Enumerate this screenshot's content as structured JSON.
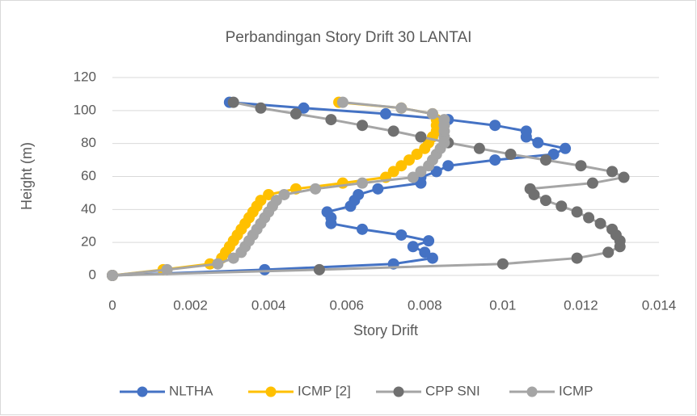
{
  "chart_data": {
    "type": "line",
    "title": "Perbandingan Story Drift 30 LANTAI",
    "x_label": "Story Drift",
    "y_label": "Height (m)",
    "xlim": [
      0,
      0.014
    ],
    "xticks": [
      0,
      0.002,
      0.004,
      0.006,
      0.008,
      0.01,
      0.012,
      0.014
    ],
    "ylim": [
      0,
      120
    ],
    "yticks": [
      0,
      20,
      40,
      60,
      80,
      100,
      120
    ],
    "grid": true,
    "legend": "bottom",
    "series": [
      {
        "name": "NLTHA",
        "color": "#4472c4",
        "marker_color": "#4472c4",
        "x": [
          0,
          0.0039,
          0.0072,
          0.0082,
          0.008,
          0.0077,
          0.0081,
          0.0074,
          0.0064,
          0.0056,
          0.0056,
          0.0055,
          0.0061,
          0.0062,
          0.0063,
          0.0068,
          0.0079,
          0.0079,
          0.0083,
          0.0086,
          0.0098,
          0.0113,
          0.0116,
          0.0109,
          0.0106,
          0.0106,
          0.0098,
          0.0086,
          0.007,
          0.0049,
          0.003
        ],
        "values": [
          0,
          3.5,
          7,
          10.5,
          14,
          17.5,
          21,
          24.5,
          28,
          31.5,
          35,
          38.5,
          42,
          45.5,
          49,
          52.5,
          56,
          59.5,
          63,
          66.5,
          70,
          73.5,
          77,
          80.5,
          84,
          87.5,
          91,
          94.5,
          98,
          101.5,
          105
        ]
      },
      {
        "name": "ICMP [2]",
        "color": "#ffc000",
        "marker_color": "#ffc000",
        "x": [
          0,
          0.0013,
          0.0025,
          0.0028,
          0.0029,
          0.003,
          0.0031,
          0.0032,
          0.0033,
          0.0034,
          0.0035,
          0.0036,
          0.0037,
          0.0038,
          0.004,
          0.0047,
          0.0059,
          0.007,
          0.0072,
          0.0074,
          0.0076,
          0.0078,
          0.008,
          0.0081,
          0.0082,
          0.0083,
          0.0083,
          0.0083,
          0.0082,
          0.0074,
          0.0058
        ],
        "values": [
          0,
          3.5,
          7,
          10.5,
          14,
          17.5,
          21,
          24.5,
          28,
          31.5,
          35,
          38.5,
          42,
          45.5,
          49,
          52.5,
          56,
          59.5,
          63,
          66.5,
          70,
          73.5,
          77,
          80.5,
          84,
          87.5,
          91,
          94.5,
          98,
          101.5,
          105
        ]
      },
      {
        "name": "CPP SNI",
        "color": "#a5a5a5",
        "marker_color": "#707070",
        "x": [
          0,
          0.0053,
          0.01,
          0.0119,
          0.0127,
          0.013,
          0.013,
          0.0129,
          0.0128,
          0.0125,
          0.0122,
          0.0119,
          0.0115,
          0.0111,
          0.0108,
          0.0107,
          0.0123,
          0.0131,
          0.0128,
          0.012,
          0.0111,
          0.0102,
          0.0094,
          0.0086,
          0.0079,
          0.0072,
          0.0064,
          0.0056,
          0.0047,
          0.0038,
          0.0031
        ],
        "values": [
          0,
          3.5,
          7,
          10.5,
          14,
          17.5,
          21,
          24.5,
          28,
          31.5,
          35,
          38.5,
          42,
          45.5,
          49,
          52.5,
          56,
          59.5,
          63,
          66.5,
          70,
          73.5,
          77,
          80.5,
          84,
          87.5,
          91,
          94.5,
          98,
          101.5,
          105
        ]
      },
      {
        "name": "ICMP",
        "color": "#a5a5a5",
        "marker_color": "#a5a5a5",
        "x": [
          0,
          0.0014,
          0.0027,
          0.0031,
          0.0033,
          0.0034,
          0.0035,
          0.0036,
          0.0037,
          0.0038,
          0.0039,
          0.004,
          0.0041,
          0.0042,
          0.0044,
          0.0052,
          0.0064,
          0.0077,
          0.0079,
          0.0081,
          0.0082,
          0.0083,
          0.0084,
          0.0085,
          0.0085,
          0.0085,
          0.0085,
          0.0085,
          0.0082,
          0.0074,
          0.0059
        ],
        "values": [
          0,
          3.5,
          7,
          10.5,
          14,
          17.5,
          21,
          24.5,
          28,
          31.5,
          35,
          38.5,
          42,
          45.5,
          49,
          52.5,
          56,
          59.5,
          63,
          66.5,
          70,
          73.5,
          77,
          80.5,
          84,
          87.5,
          91,
          94.5,
          98,
          101.5,
          105
        ]
      }
    ]
  }
}
